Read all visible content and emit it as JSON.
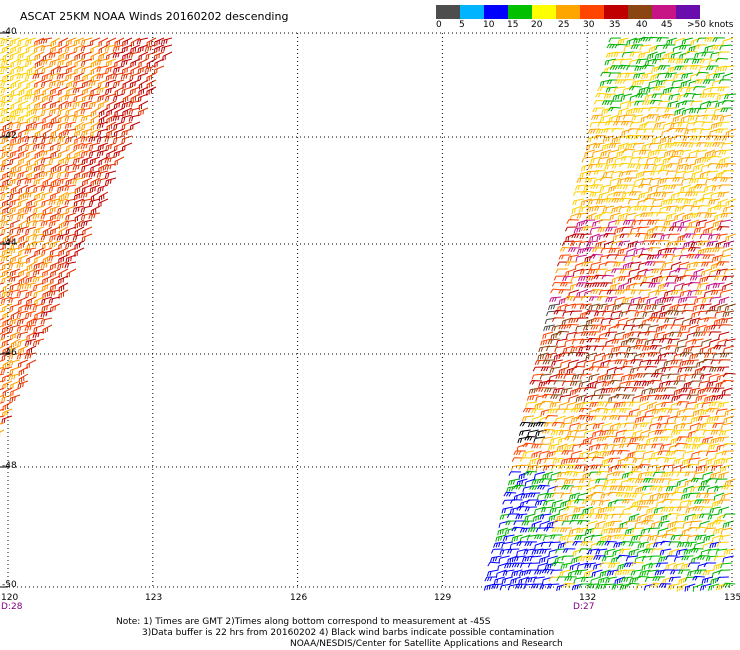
{
  "title": "ASCAT 25KM NOAA Winds 20160202 descending",
  "legend": {
    "labels": [
      "0",
      "5",
      "10",
      "15",
      "20",
      "25",
      "30",
      "35",
      "40",
      "45",
      ">50 knots"
    ],
    "colors": [
      "#4d4d4d",
      "#00b4ff",
      "#0000ff",
      "#00c000",
      "#ffff00",
      "#ffa500",
      "#ff4500",
      "#c00000",
      "#8b4513",
      "#c71585",
      "#6a0dad"
    ]
  },
  "latitudes": [
    "-40",
    "-42",
    "-44",
    "-46",
    "-48",
    "-50"
  ],
  "longitudes": [
    "120",
    "123",
    "126",
    "129",
    "132",
    "135"
  ],
  "times": {
    "left": "D:28",
    "right": "D:27"
  },
  "notes": {
    "line1": "Note: 1) Times are GMT 2)Times along bottom correspond to measurement at -45S",
    "line2": "3)Data buffer is 22 hrs from 20160202 4) Black wind barbs indicate possible contamination",
    "line3": "NOAA/NESDIS/Center for Satellite Applications and Research"
  },
  "map": {
    "lat_range": [
      -50,
      -40
    ],
    "lon_range": [
      120,
      135
    ],
    "swaths": [
      {
        "name": "left-swath",
        "time_label": "D:28",
        "dominant_speeds_knots": "25-35"
      },
      {
        "name": "right-swath",
        "time_label": "D:27",
        "dominant_speeds_knots": "10-40"
      }
    ]
  }
}
